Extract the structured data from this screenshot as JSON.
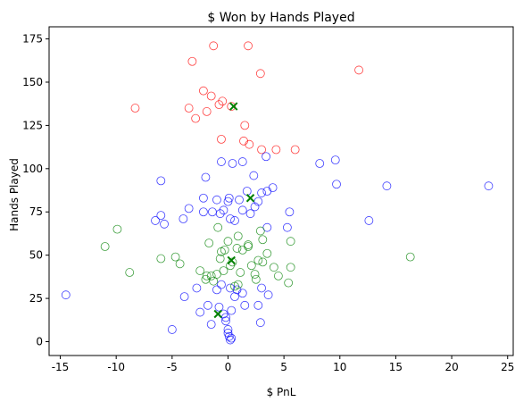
{
  "chart_data": {
    "type": "scatter",
    "title": "$ Won by Hands Played",
    "xlabel": "$ PnL",
    "ylabel": "Hands Played",
    "xlim": [
      -16,
      25.5
    ],
    "ylim": [
      -8,
      182
    ],
    "xticks": [
      -15,
      -10,
      -5,
      0,
      5,
      10,
      15,
      20,
      25
    ],
    "yticks": [
      0,
      25,
      50,
      75,
      100,
      125,
      150,
      175
    ],
    "legend": "none",
    "grid": false,
    "series": [
      {
        "color": "#ff0000",
        "marker": "hollow-circle",
        "points": [
          [
            -1.3,
            171
          ],
          [
            1.8,
            171
          ],
          [
            -3.2,
            162
          ],
          [
            2.9,
            155
          ],
          [
            11.7,
            157
          ],
          [
            -2.2,
            145
          ],
          [
            -1.5,
            142
          ],
          [
            -0.5,
            139
          ],
          [
            0.3,
            136
          ],
          [
            -0.8,
            137
          ],
          [
            -3.5,
            135
          ],
          [
            -8.3,
            135
          ],
          [
            -1.9,
            133
          ],
          [
            -2.9,
            129
          ],
          [
            1.5,
            125
          ],
          [
            -0.6,
            117
          ],
          [
            1.4,
            116
          ],
          [
            1.9,
            114
          ],
          [
            3.0,
            111
          ],
          [
            4.3,
            111
          ],
          [
            6.0,
            111
          ]
        ]
      },
      {
        "color": "#0000ff",
        "marker": "hollow-circle",
        "points": [
          [
            -0.6,
            104
          ],
          [
            0.4,
            103
          ],
          [
            1.3,
            104
          ],
          [
            3.4,
            107
          ],
          [
            8.2,
            103
          ],
          [
            9.6,
            105
          ],
          [
            9.7,
            91
          ],
          [
            14.2,
            90
          ],
          [
            23.3,
            90
          ],
          [
            -6.0,
            93
          ],
          [
            -2.0,
            95
          ],
          [
            2.3,
            96
          ],
          [
            -1.0,
            82
          ],
          [
            -2.2,
            83
          ],
          [
            0.0,
            81
          ],
          [
            0.1,
            83
          ],
          [
            1.0,
            82
          ],
          [
            2.7,
            81
          ],
          [
            3.0,
            86
          ],
          [
            3.5,
            87
          ],
          [
            4.0,
            89
          ],
          [
            1.7,
            87
          ],
          [
            -3.5,
            77
          ],
          [
            -2.2,
            75
          ],
          [
            -1.4,
            75
          ],
          [
            -0.4,
            76
          ],
          [
            1.3,
            76
          ],
          [
            2.4,
            78
          ],
          [
            2.0,
            74
          ],
          [
            5.5,
            75
          ],
          [
            -6.0,
            73
          ],
          [
            -6.5,
            70
          ],
          [
            -5.7,
            68
          ],
          [
            -4.0,
            71
          ],
          [
            0.2,
            71
          ],
          [
            0.6,
            70
          ],
          [
            -0.7,
            74
          ],
          [
            3.5,
            66
          ],
          [
            5.3,
            66
          ],
          [
            12.6,
            70
          ],
          [
            -14.5,
            27
          ],
          [
            -5.0,
            7
          ],
          [
            -3.9,
            26
          ],
          [
            -2.8,
            31
          ],
          [
            -2.5,
            17
          ],
          [
            -1.8,
            21
          ],
          [
            -1.5,
            10
          ],
          [
            -1.0,
            30
          ],
          [
            -0.6,
            33
          ],
          [
            0.2,
            31
          ],
          [
            0.6,
            26
          ],
          [
            0.8,
            30
          ],
          [
            1.3,
            28
          ],
          [
            1.5,
            21
          ],
          [
            2.7,
            21
          ],
          [
            3.0,
            31
          ],
          [
            3.6,
            27
          ],
          [
            -0.8,
            20
          ],
          [
            -0.4,
            16
          ],
          [
            -0.2,
            12
          ],
          [
            0.0,
            7
          ],
          [
            0.0,
            5
          ],
          [
            0.1,
            3
          ],
          [
            0.2,
            1
          ],
          [
            0.3,
            2
          ],
          [
            -0.2,
            14
          ],
          [
            0.3,
            18
          ],
          [
            2.9,
            11
          ]
        ]
      },
      {
        "color": "#008000",
        "marker": "hollow-circle",
        "points": [
          [
            -11.0,
            55
          ],
          [
            -9.9,
            65
          ],
          [
            -8.8,
            40
          ],
          [
            -6.0,
            48
          ],
          [
            -4.7,
            49
          ],
          [
            -4.3,
            45
          ],
          [
            -2.5,
            41
          ],
          [
            -2.0,
            36
          ],
          [
            -1.7,
            57
          ],
          [
            -1.5,
            38
          ],
          [
            -1.3,
            35
          ],
          [
            -1.0,
            39
          ],
          [
            -0.7,
            48
          ],
          [
            -0.6,
            52
          ],
          [
            -0.3,
            53
          ],
          [
            0.0,
            58
          ],
          [
            0.4,
            46
          ],
          [
            0.8,
            54
          ],
          [
            0.9,
            61
          ],
          [
            1.3,
            53
          ],
          [
            1.8,
            56
          ],
          [
            2.1,
            44
          ],
          [
            2.4,
            39
          ],
          [
            2.7,
            47
          ],
          [
            3.1,
            46
          ],
          [
            3.5,
            51
          ],
          [
            4.1,
            43
          ],
          [
            4.5,
            38
          ],
          [
            5.4,
            34
          ],
          [
            5.6,
            43
          ],
          [
            5.6,
            58
          ],
          [
            16.3,
            49
          ],
          [
            -0.9,
            66
          ],
          [
            0.6,
            32
          ],
          [
            0.9,
            33
          ],
          [
            1.8,
            55
          ],
          [
            2.5,
            36
          ],
          [
            2.9,
            64
          ],
          [
            3.1,
            59
          ],
          [
            -1.9,
            38
          ],
          [
            -0.4,
            41
          ],
          [
            0.2,
            44
          ],
          [
            1.1,
            40
          ]
        ]
      },
      {
        "color": "#008000",
        "marker": "x",
        "points": [
          [
            0.5,
            136
          ],
          [
            2.0,
            83
          ],
          [
            0.3,
            47
          ],
          [
            -0.9,
            16
          ]
        ]
      }
    ]
  }
}
